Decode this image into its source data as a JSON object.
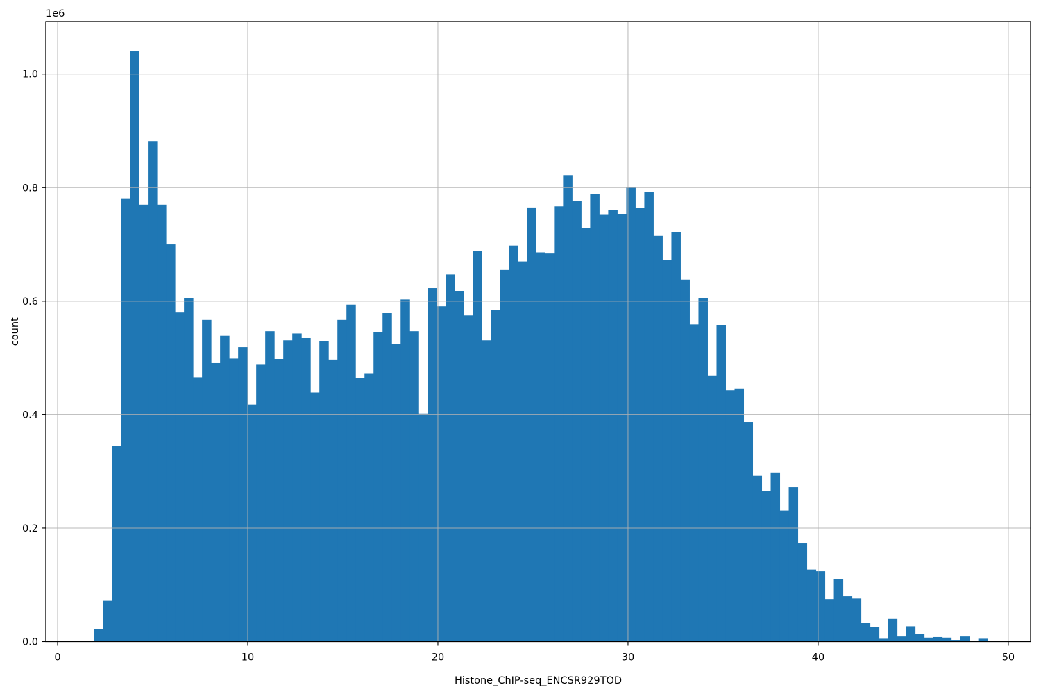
{
  "chart_data": {
    "type": "bar",
    "subtype": "histogram",
    "title": "",
    "xlabel": "Histone_ChIP-seq_ENCSR929TOD",
    "ylabel": "count",
    "y_offset_label": "1e6",
    "bar_color": "#1f77b4",
    "grid_color": "#b0b0b0",
    "spine_color": "#000000",
    "background_color": "#ffffff",
    "grid": "on, drawn above bars",
    "legend": "none",
    "xlim": [
      -0.62,
      51.17
    ],
    "ylim": [
      0,
      1092600
    ],
    "x_ticks": [
      0,
      10,
      20,
      30,
      40,
      50
    ],
    "y_ticks": [
      200000,
      400000,
      600000,
      800000,
      1000000
    ],
    "y_tick_labels": [
      "0.2",
      "0.4",
      "0.6",
      "0.8",
      "1.0"
    ],
    "y_zero_tick_label": "0.0",
    "bin_start": 1.9,
    "bin_width": 0.4747,
    "counts": [
      22000,
      72000,
      345000,
      780000,
      1040000,
      770000,
      882000,
      770000,
      700000,
      580000,
      605000,
      466000,
      567000,
      491000,
      539000,
      499000,
      519000,
      418000,
      488000,
      547000,
      498000,
      531000,
      543000,
      535000,
      439000,
      530000,
      496000,
      567000,
      594000,
      465000,
      472000,
      545000,
      579000,
      524000,
      603000,
      547000,
      402000,
      623000,
      591000,
      647000,
      618000,
      575000,
      688000,
      531000,
      585000,
      655000,
      698000,
      670000,
      765000,
      686000,
      684000,
      767000,
      822000,
      776000,
      729000,
      789000,
      752000,
      761000,
      753000,
      801000,
      764000,
      793000,
      715000,
      673000,
      721000,
      638000,
      559000,
      605000,
      468000,
      558000,
      443000,
      446000,
      387000,
      292000,
      265000,
      298000,
      231000,
      272000,
      173000,
      127000,
      124000,
      75000,
      110000,
      80000,
      76000,
      33000,
      26000,
      5000,
      40000,
      9000,
      27000,
      13000,
      7000,
      8000,
      7000,
      3000,
      9000,
      1000,
      5000,
      1000
    ]
  }
}
